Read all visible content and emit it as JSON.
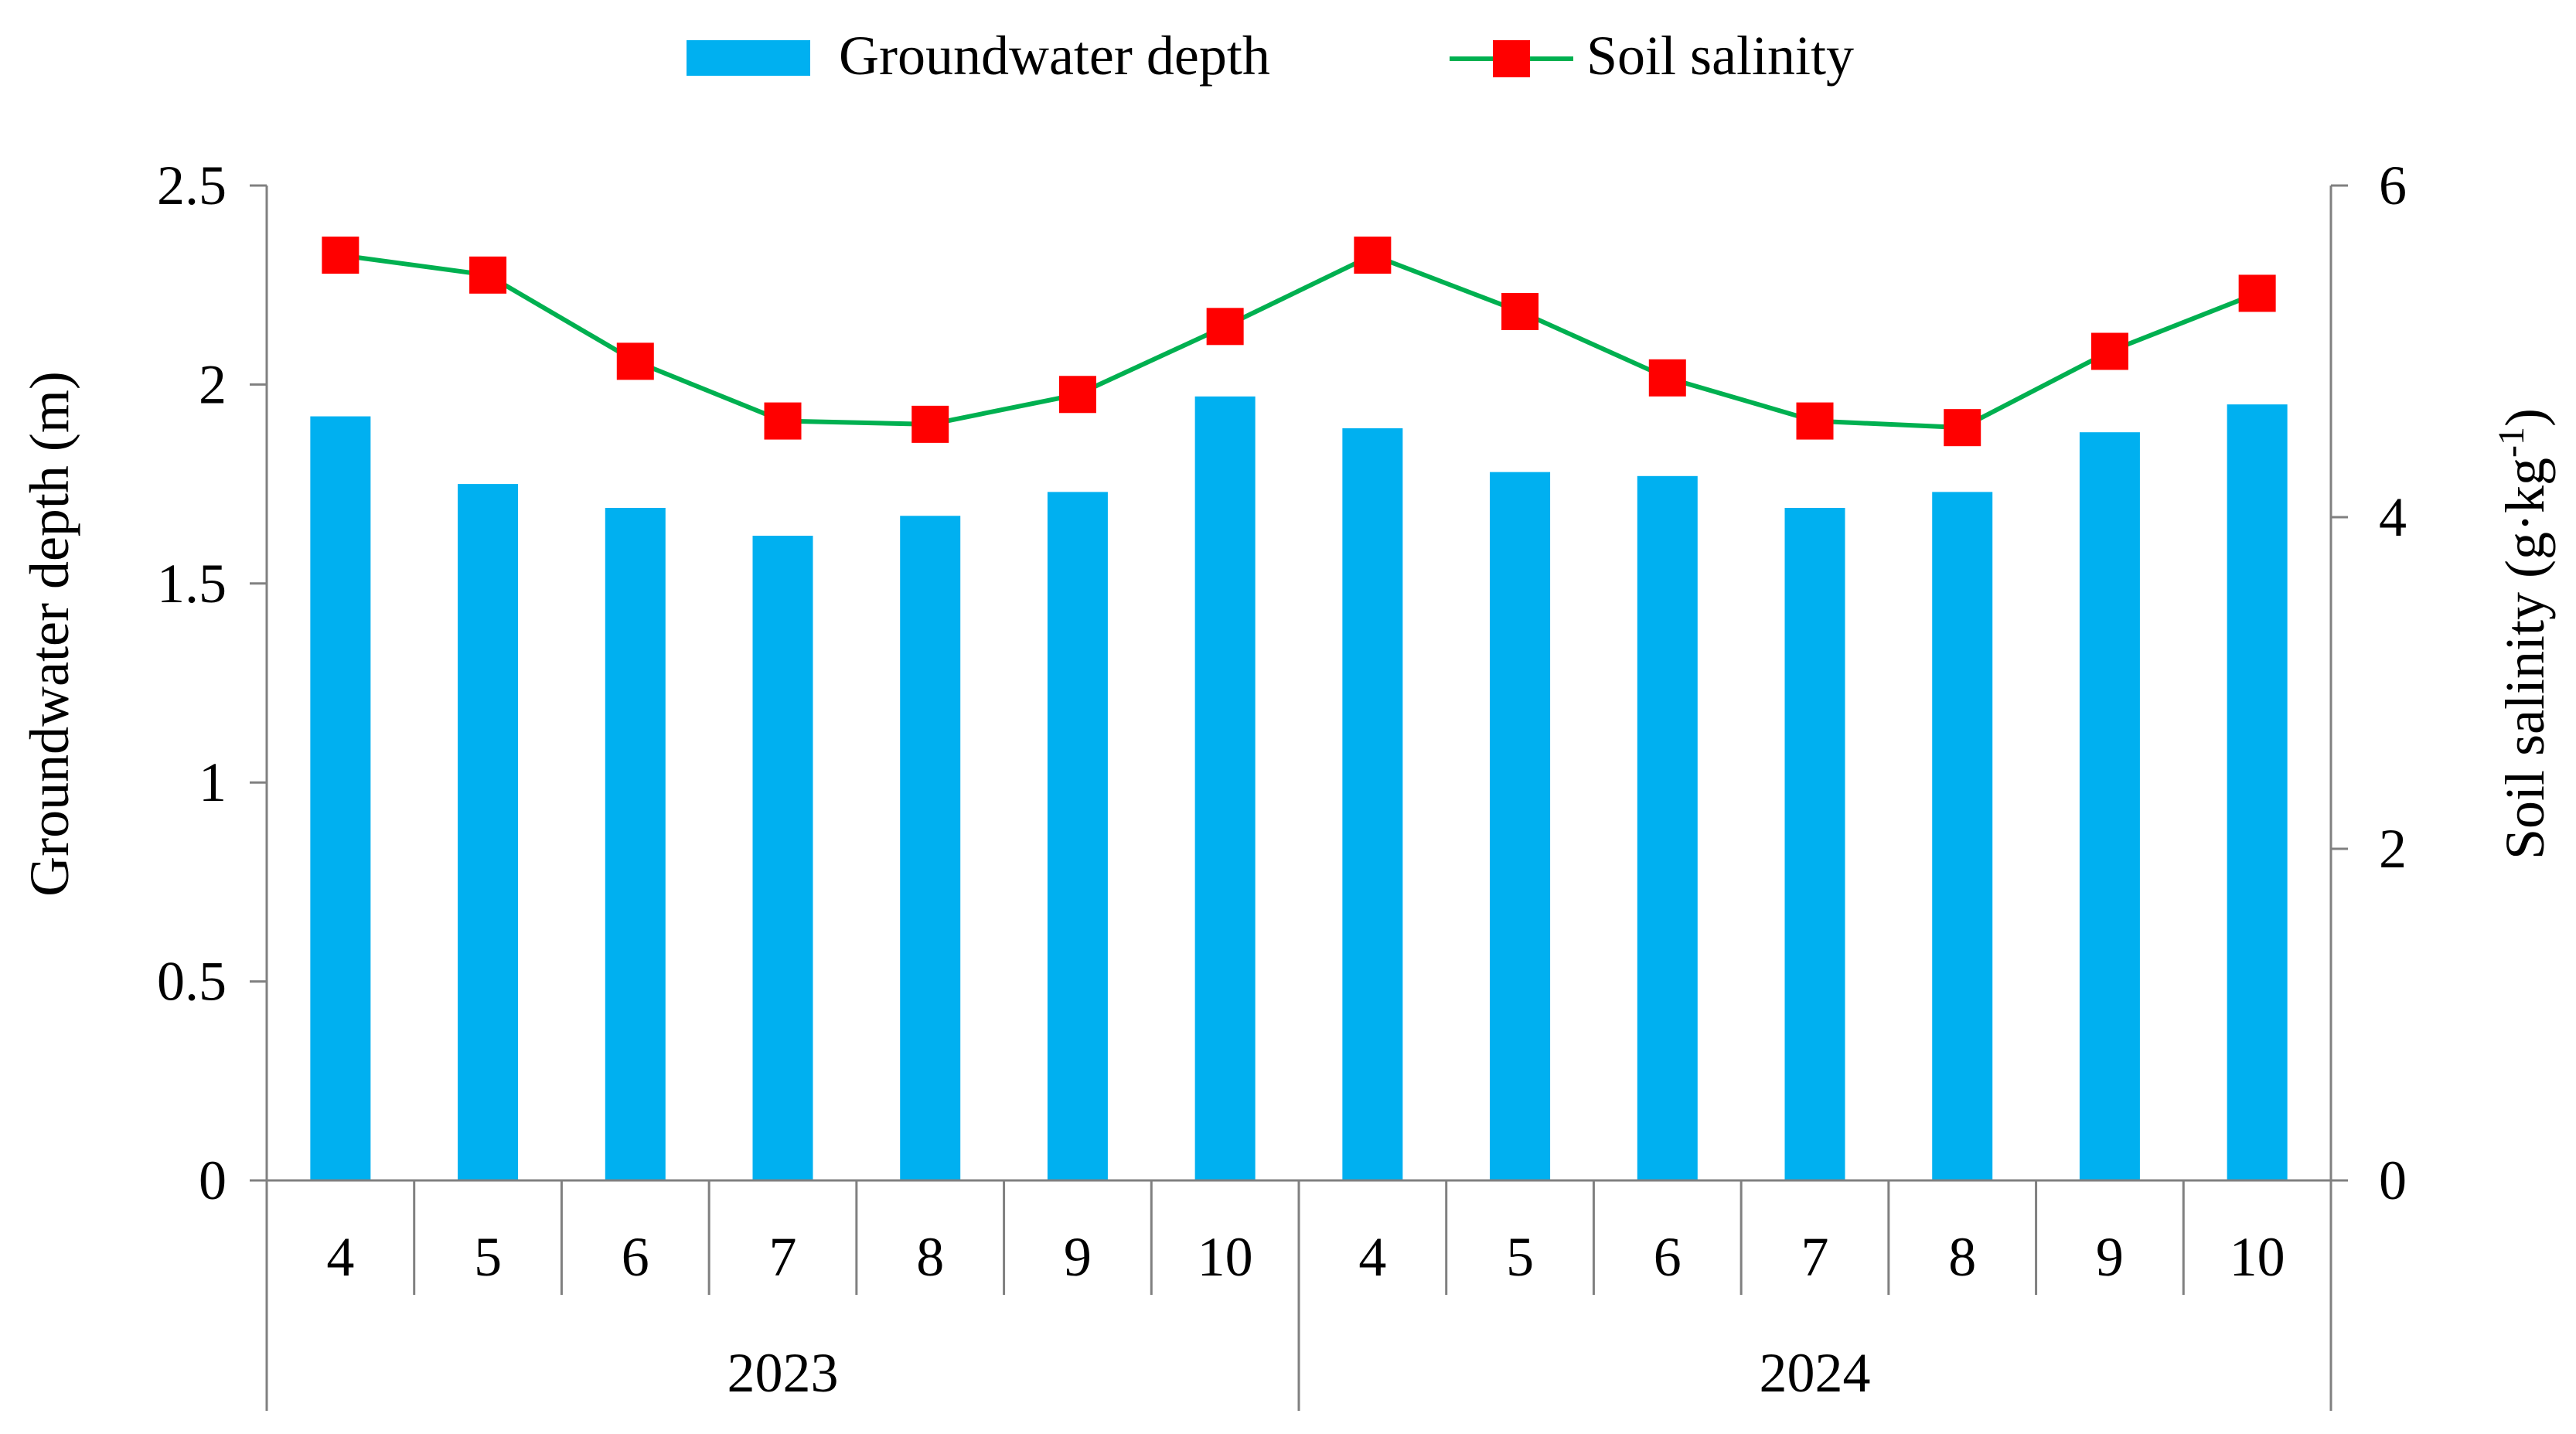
{
  "colors": {
    "bar": "#00B0F0",
    "line": "#00B050",
    "marker": "#FF0000",
    "axis": "#808080",
    "text": "#000000"
  },
  "chart_data": {
    "type": "bar+line",
    "categories": [
      "4",
      "5",
      "6",
      "7",
      "8",
      "9",
      "10",
      "4",
      "5",
      "6",
      "7",
      "8",
      "9",
      "10"
    ],
    "groups": [
      {
        "label": "2023",
        "count": 7
      },
      {
        "label": "2024",
        "count": 7
      }
    ],
    "series": [
      {
        "name": "Groundwater depth",
        "type": "bar",
        "axis": "left",
        "values": [
          1.92,
          1.75,
          1.69,
          1.62,
          1.67,
          1.73,
          1.97,
          1.89,
          1.78,
          1.77,
          1.69,
          1.73,
          1.88,
          1.95
        ]
      },
      {
        "name": "Soil salinity",
        "type": "line",
        "axis": "right",
        "values": [
          5.58,
          5.46,
          4.94,
          4.58,
          4.56,
          4.74,
          5.15,
          5.58,
          5.24,
          4.84,
          4.58,
          4.54,
          5.0,
          5.35
        ]
      }
    ],
    "y_left": {
      "label": "Groundwater depth (m)",
      "range": [
        0,
        2.5
      ],
      "ticks": [
        "0",
        "0.5",
        "1",
        "1.5",
        "2",
        "2.5"
      ]
    },
    "y_right": {
      "label_main": "Soil salinity (g·kg",
      "label_sup": "-1",
      "label_end": ")",
      "range": [
        0,
        6
      ],
      "ticks": [
        "0",
        "2",
        "4",
        "6"
      ]
    },
    "legend": {
      "position": "top-center",
      "items": [
        "Groundwater depth",
        "Soil salinity"
      ]
    },
    "grid": false
  }
}
